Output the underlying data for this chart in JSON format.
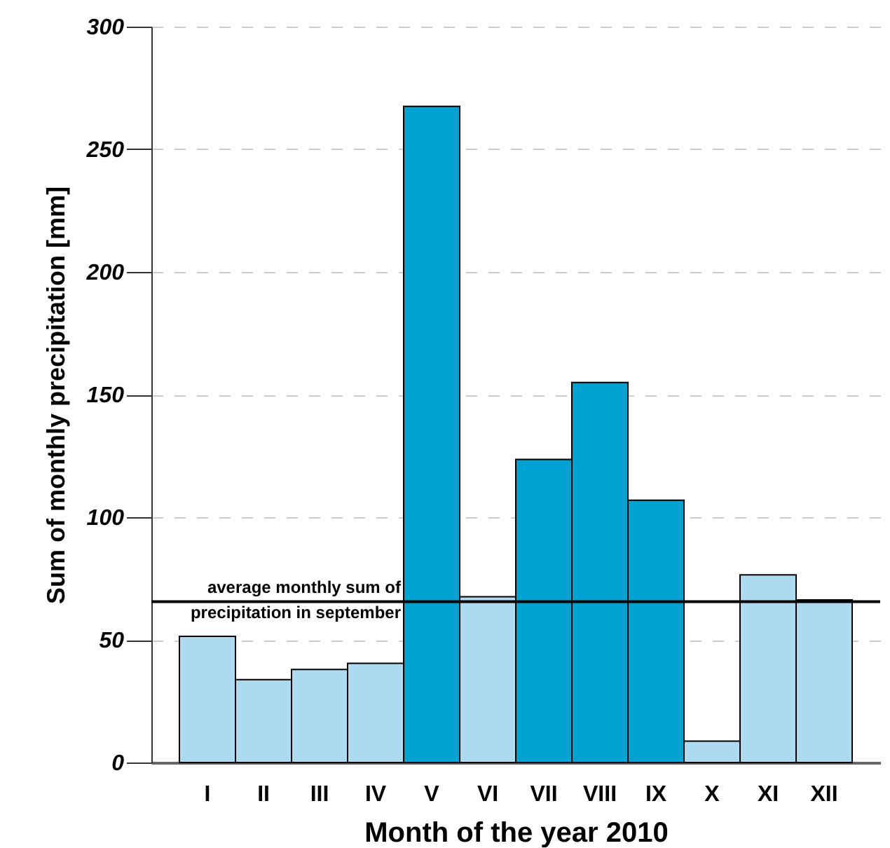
{
  "chart_data": {
    "type": "bar",
    "xlabel": "Month of the year 2010",
    "ylabel": "Sum of monthly precipitation [mm]",
    "categories": [
      "I",
      "II",
      "III",
      "IV",
      "V",
      "VI",
      "VII",
      "VIII",
      "IX",
      "X",
      "XI",
      "XII"
    ],
    "values": [
      51.4,
      33.8,
      37.9,
      40.4,
      267.5,
      67.6,
      123.6,
      154.9,
      106.9,
      8.7,
      76.5,
      66.3
    ],
    "colors": [
      "#addaef",
      "#addaef",
      "#addaef",
      "#addaef",
      "#00a2d1",
      "#addaef",
      "#00a2d1",
      "#00a2d1",
      "#00a2d1",
      "#addaef",
      "#addaef",
      "#addaef"
    ],
    "ylim": [
      0,
      300
    ],
    "yticks": [
      0,
      50,
      100,
      150,
      200,
      250,
      300
    ],
    "grid": "y",
    "ref_lines": [
      {
        "axis": "y",
        "value": 65.6,
        "label": "average monthly sum of precipitation in september",
        "color": "#000000"
      }
    ]
  }
}
